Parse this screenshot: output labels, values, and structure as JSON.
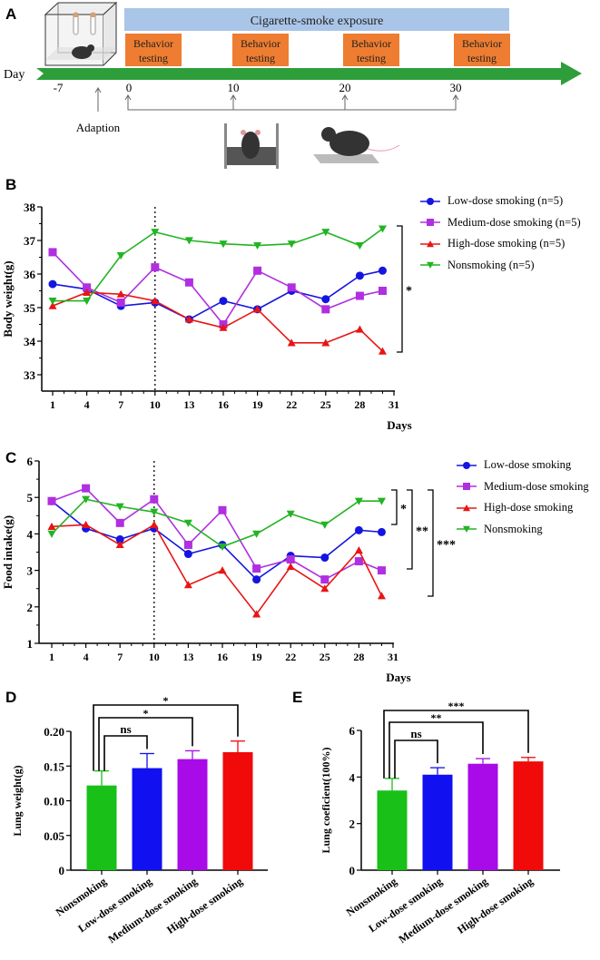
{
  "panel_a": {
    "label": "A",
    "exposure_label": "Cigarette-smoke exposure",
    "behavior_label_line1": "Behavior",
    "behavior_label_line2": "testing",
    "day_label": "Day",
    "day_ticks": [
      "-7",
      "0",
      "10",
      "20",
      "30"
    ],
    "adaption_label": "Adaption",
    "colors": {
      "exposure": "#a9c5e8",
      "behavior": "#ee7d31",
      "arrow": "#2e9e3a"
    }
  },
  "chart_data": [
    {
      "panel": "B",
      "type": "line",
      "ylabel": "Body weight(g)",
      "xlabel": "Days",
      "ylim": [
        33,
        38
      ],
      "yticks": [
        33,
        34,
        35,
        36,
        37,
        38
      ],
      "xlim": [
        1,
        31
      ],
      "xticks": [
        1,
        4,
        7,
        10,
        13,
        16,
        19,
        22,
        25,
        28,
        31
      ],
      "vline": 10,
      "x": [
        1,
        4,
        7,
        10,
        13,
        16,
        19,
        22,
        25,
        28,
        30
      ],
      "series": [
        {
          "name": "Low-dose smoking (n=5)",
          "color": "#1515e0",
          "marker": "circle",
          "values": [
            35.7,
            35.55,
            35.05,
            35.15,
            34.65,
            35.2,
            34.95,
            35.5,
            35.25,
            35.95,
            36.1
          ]
        },
        {
          "name": "Medium-dose smoking (n=5)",
          "color": "#b02fe0",
          "marker": "square",
          "values": [
            36.65,
            35.6,
            35.15,
            36.2,
            35.75,
            34.5,
            36.1,
            35.6,
            34.95,
            35.35,
            35.5
          ]
        },
        {
          "name": "High-dose smoking (n=5)",
          "color": "#e81515",
          "marker": "triangle-up",
          "values": [
            35.05,
            35.45,
            35.4,
            35.2,
            34.65,
            34.4,
            34.95,
            33.95,
            33.95,
            34.35,
            33.7
          ]
        },
        {
          "name": "Nonsmoking (n=5)",
          "color": "#22b422",
          "marker": "triangle-down",
          "values": [
            35.2,
            35.2,
            36.55,
            37.25,
            37.0,
            36.9,
            36.85,
            36.9,
            37.25,
            36.85,
            37.35
          ]
        }
      ],
      "annotations": [
        "*"
      ],
      "legend": "right"
    },
    {
      "panel": "C",
      "type": "line",
      "ylabel": "Food intake(g)",
      "xlabel": "Days",
      "ylim": [
        1,
        6
      ],
      "yticks": [
        1,
        2,
        3,
        4,
        5,
        6
      ],
      "xlim": [
        1,
        31
      ],
      "xticks": [
        1,
        4,
        7,
        10,
        13,
        16,
        19,
        22,
        25,
        28,
        31
      ],
      "vline": 10,
      "x": [
        1,
        4,
        7,
        10,
        13,
        16,
        19,
        22,
        25,
        28,
        30
      ],
      "series": [
        {
          "name": "Low-dose smoking",
          "color": "#1515e0",
          "marker": "circle",
          "values": [
            4.9,
            4.15,
            3.85,
            4.15,
            3.45,
            3.7,
            2.75,
            3.4,
            3.35,
            4.1,
            4.05
          ]
        },
        {
          "name": "Medium-dose smoking",
          "color": "#b02fe0",
          "marker": "square",
          "values": [
            4.9,
            5.25,
            4.3,
            4.95,
            3.7,
            4.65,
            3.05,
            3.3,
            2.75,
            3.25,
            3.0
          ]
        },
        {
          "name": "High-dose smoking",
          "color": "#e81515",
          "marker": "triangle-up",
          "values": [
            4.2,
            4.25,
            3.7,
            4.25,
            2.6,
            3.0,
            1.8,
            3.1,
            2.5,
            3.55,
            2.3
          ]
        },
        {
          "name": "Nonsmoking",
          "color": "#22b422",
          "marker": "triangle-down",
          "values": [
            4.0,
            4.95,
            4.75,
            4.6,
            4.3,
            3.65,
            4.0,
            4.55,
            4.25,
            4.9,
            4.9
          ]
        }
      ],
      "annotations": [
        "*",
        "**",
        "***"
      ],
      "legend": "right"
    },
    {
      "panel": "D",
      "type": "bar",
      "ylabel": "Lung weight(g)",
      "ylim": [
        0,
        0.2
      ],
      "yticks": [
        "0",
        "0.05",
        "0.10",
        "0.15",
        "0.20"
      ],
      "categories": [
        "Nonsmoking",
        "Low-dose smoking",
        "Medium-dose smoking",
        "High-dose smoking"
      ],
      "values": [
        0.122,
        0.147,
        0.16,
        0.17
      ],
      "errors": [
        0.021,
        0.021,
        0.012,
        0.016
      ],
      "colors": [
        "#18c018",
        "#1010f0",
        "#a80ae8",
        "#f00a0a"
      ],
      "comparisons": [
        {
          "from": 0,
          "to": 1,
          "label": "ns"
        },
        {
          "from": 0,
          "to": 2,
          "label": "*"
        },
        {
          "from": 0,
          "to": 3,
          "label": "*"
        }
      ]
    },
    {
      "panel": "E",
      "type": "bar",
      "ylabel": "Lung coeficient(100%)",
      "ylim": [
        0,
        6
      ],
      "yticks": [
        "0",
        "2",
        "4",
        "6"
      ],
      "categories": [
        "Nonsmoking",
        "Low-dose smoking",
        "Medium-dose smoking",
        "High-dose smoking"
      ],
      "values": [
        3.42,
        4.1,
        4.57,
        4.67
      ],
      "errors": [
        0.52,
        0.3,
        0.22,
        0.17
      ],
      "colors": [
        "#18c018",
        "#1010f0",
        "#a80ae8",
        "#f00a0a"
      ],
      "comparisons": [
        {
          "from": 0,
          "to": 1,
          "label": "ns"
        },
        {
          "from": 0,
          "to": 2,
          "label": "**"
        },
        {
          "from": 0,
          "to": 3,
          "label": "***"
        }
      ]
    }
  ]
}
